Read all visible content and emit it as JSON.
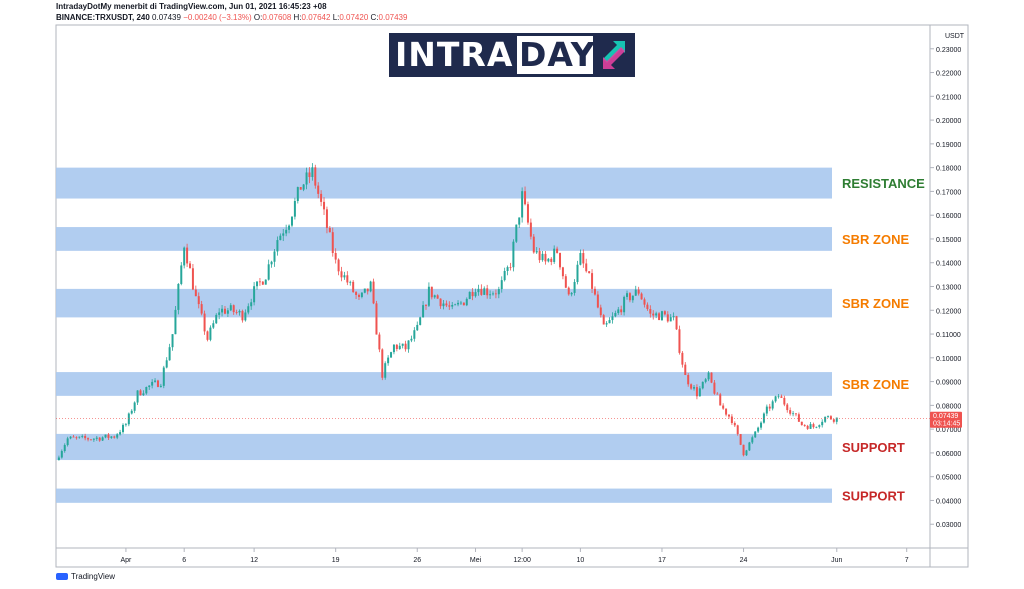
{
  "header": {
    "line1": "IntradayDotMy menerbit di TradingView.com, Jun 01, 2021 16:45:23 +08",
    "symbol": "BINANCE:TRXUSDT, 240",
    "last": "0.07439",
    "change": "−0.00240 (−3.13%)",
    "o_label": "O:",
    "o_value": "0.07608",
    "h_label": "H:",
    "h_value": "0.07642",
    "l_label": "L:",
    "l_value": "0.07420",
    "c_label": "C:",
    "c_value": "0.07439"
  },
  "logo_text": "INTRADAY",
  "footer_brand": "TradingView",
  "currency": "USDT",
  "price_tag": {
    "price": "0.07439",
    "countdown": "03:14:45"
  },
  "colors": {
    "zone": "#a8c8ee",
    "up": "#26a69a",
    "down": "#ef5350",
    "resistance": "#2e7d32",
    "sbr": "#f57c00",
    "support": "#c62828"
  },
  "chart_data": {
    "type": "candlestick",
    "yaxis": {
      "min": 0.02,
      "max": 0.24,
      "ticks": [
        "0.03000",
        "0.04000",
        "0.05000",
        "0.06000",
        "0.07000",
        "0.08000",
        "0.09000",
        "0.10000",
        "0.11000",
        "0.12000",
        "0.13000",
        "0.14000",
        "0.15000",
        "0.16000",
        "0.17000",
        "0.18000",
        "0.19000",
        "0.20000",
        "0.21000",
        "0.22000",
        "0.23000"
      ]
    },
    "xaxis": {
      "start": "2021-03-26",
      "end": "2021-06-09",
      "ticks": [
        {
          "date": "2021-04-01",
          "label": "Apr"
        },
        {
          "date": "2021-04-06",
          "label": "6"
        },
        {
          "date": "2021-04-12",
          "label": "12"
        },
        {
          "date": "2021-04-19",
          "label": "19"
        },
        {
          "date": "2021-04-26",
          "label": "26"
        },
        {
          "date": "2021-05-01",
          "label": "Mei"
        },
        {
          "date": "2021-05-05",
          "label": "12:00"
        },
        {
          "date": "2021-05-10",
          "label": "10"
        },
        {
          "date": "2021-05-17",
          "label": "17"
        },
        {
          "date": "2021-05-24",
          "label": "24"
        },
        {
          "date": "2021-06-01",
          "label": "Jun"
        },
        {
          "date": "2021-06-07",
          "label": "7"
        }
      ]
    },
    "zones": [
      {
        "label": "RESISTANCE",
        "kind": "resistance",
        "low": 0.167,
        "high": 0.18
      },
      {
        "label": "SBR ZONE",
        "kind": "sbr",
        "low": 0.145,
        "high": 0.155
      },
      {
        "label": "SBR ZONE",
        "kind": "sbr",
        "low": 0.117,
        "high": 0.129
      },
      {
        "label": "SBR ZONE",
        "kind": "sbr",
        "low": 0.084,
        "high": 0.094
      },
      {
        "label": "SUPPORT",
        "kind": "support",
        "low": 0.057,
        "high": 0.068
      },
      {
        "label": "SUPPORT",
        "kind": "support",
        "low": 0.039,
        "high": 0.045
      }
    ],
    "path": [
      [
        "2021-03-26",
        0.057
      ],
      [
        "2021-03-27",
        0.066
      ],
      [
        "2021-03-29",
        0.066
      ],
      [
        "2021-03-31",
        0.067
      ],
      [
        "2021-04-01",
        0.072
      ],
      [
        "2021-04-02",
        0.085
      ],
      [
        "2021-04-03",
        0.088
      ],
      [
        "2021-04-04",
        0.09
      ],
      [
        "2021-04-05",
        0.11
      ],
      [
        "2021-04-06",
        0.148
      ],
      [
        "2021-04-07",
        0.125
      ],
      [
        "2021-04-08",
        0.108
      ],
      [
        "2021-04-09",
        0.12
      ],
      [
        "2021-04-10",
        0.12
      ],
      [
        "2021-04-11",
        0.118
      ],
      [
        "2021-04-12",
        0.128
      ],
      [
        "2021-04-13",
        0.135
      ],
      [
        "2021-04-14",
        0.15
      ],
      [
        "2021-04-15",
        0.158
      ],
      [
        "2021-04-16",
        0.172
      ],
      [
        "2021-04-17",
        0.178
      ],
      [
        "2021-04-18",
        0.16
      ],
      [
        "2021-04-19",
        0.14
      ],
      [
        "2021-04-20",
        0.132
      ],
      [
        "2021-04-21",
        0.124
      ],
      [
        "2021-04-22",
        0.13
      ],
      [
        "2021-04-23",
        0.093
      ],
      [
        "2021-04-24",
        0.105
      ],
      [
        "2021-04-25",
        0.104
      ],
      [
        "2021-04-26",
        0.112
      ],
      [
        "2021-04-27",
        0.128
      ],
      [
        "2021-04-28",
        0.124
      ],
      [
        "2021-04-29",
        0.12
      ],
      [
        "2021-04-30",
        0.124
      ],
      [
        "2021-05-01",
        0.13
      ],
      [
        "2021-05-02",
        0.128
      ],
      [
        "2021-05-03",
        0.128
      ],
      [
        "2021-05-04",
        0.14
      ],
      [
        "2021-05-05",
        0.168
      ],
      [
        "2021-05-06",
        0.145
      ],
      [
        "2021-05-07",
        0.14
      ],
      [
        "2021-05-08",
        0.145
      ],
      [
        "2021-05-09",
        0.125
      ],
      [
        "2021-05-10",
        0.142
      ],
      [
        "2021-05-11",
        0.13
      ],
      [
        "2021-05-12",
        0.112
      ],
      [
        "2021-05-13",
        0.118
      ],
      [
        "2021-05-14",
        0.125
      ],
      [
        "2021-05-15",
        0.128
      ],
      [
        "2021-05-16",
        0.118
      ],
      [
        "2021-05-17",
        0.118
      ],
      [
        "2021-05-18",
        0.116
      ],
      [
        "2021-05-19",
        0.092
      ],
      [
        "2021-05-20",
        0.085
      ],
      [
        "2021-05-21",
        0.092
      ],
      [
        "2021-05-22",
        0.08
      ],
      [
        "2021-05-23",
        0.074
      ],
      [
        "2021-05-24",
        0.06
      ],
      [
        "2021-05-25",
        0.068
      ],
      [
        "2021-05-26",
        0.078
      ],
      [
        "2021-05-27",
        0.084
      ],
      [
        "2021-05-28",
        0.078
      ],
      [
        "2021-05-29",
        0.072
      ],
      [
        "2021-05-30",
        0.071
      ],
      [
        "2021-05-31",
        0.075
      ],
      [
        "2021-06-01",
        0.0744
      ]
    ]
  }
}
